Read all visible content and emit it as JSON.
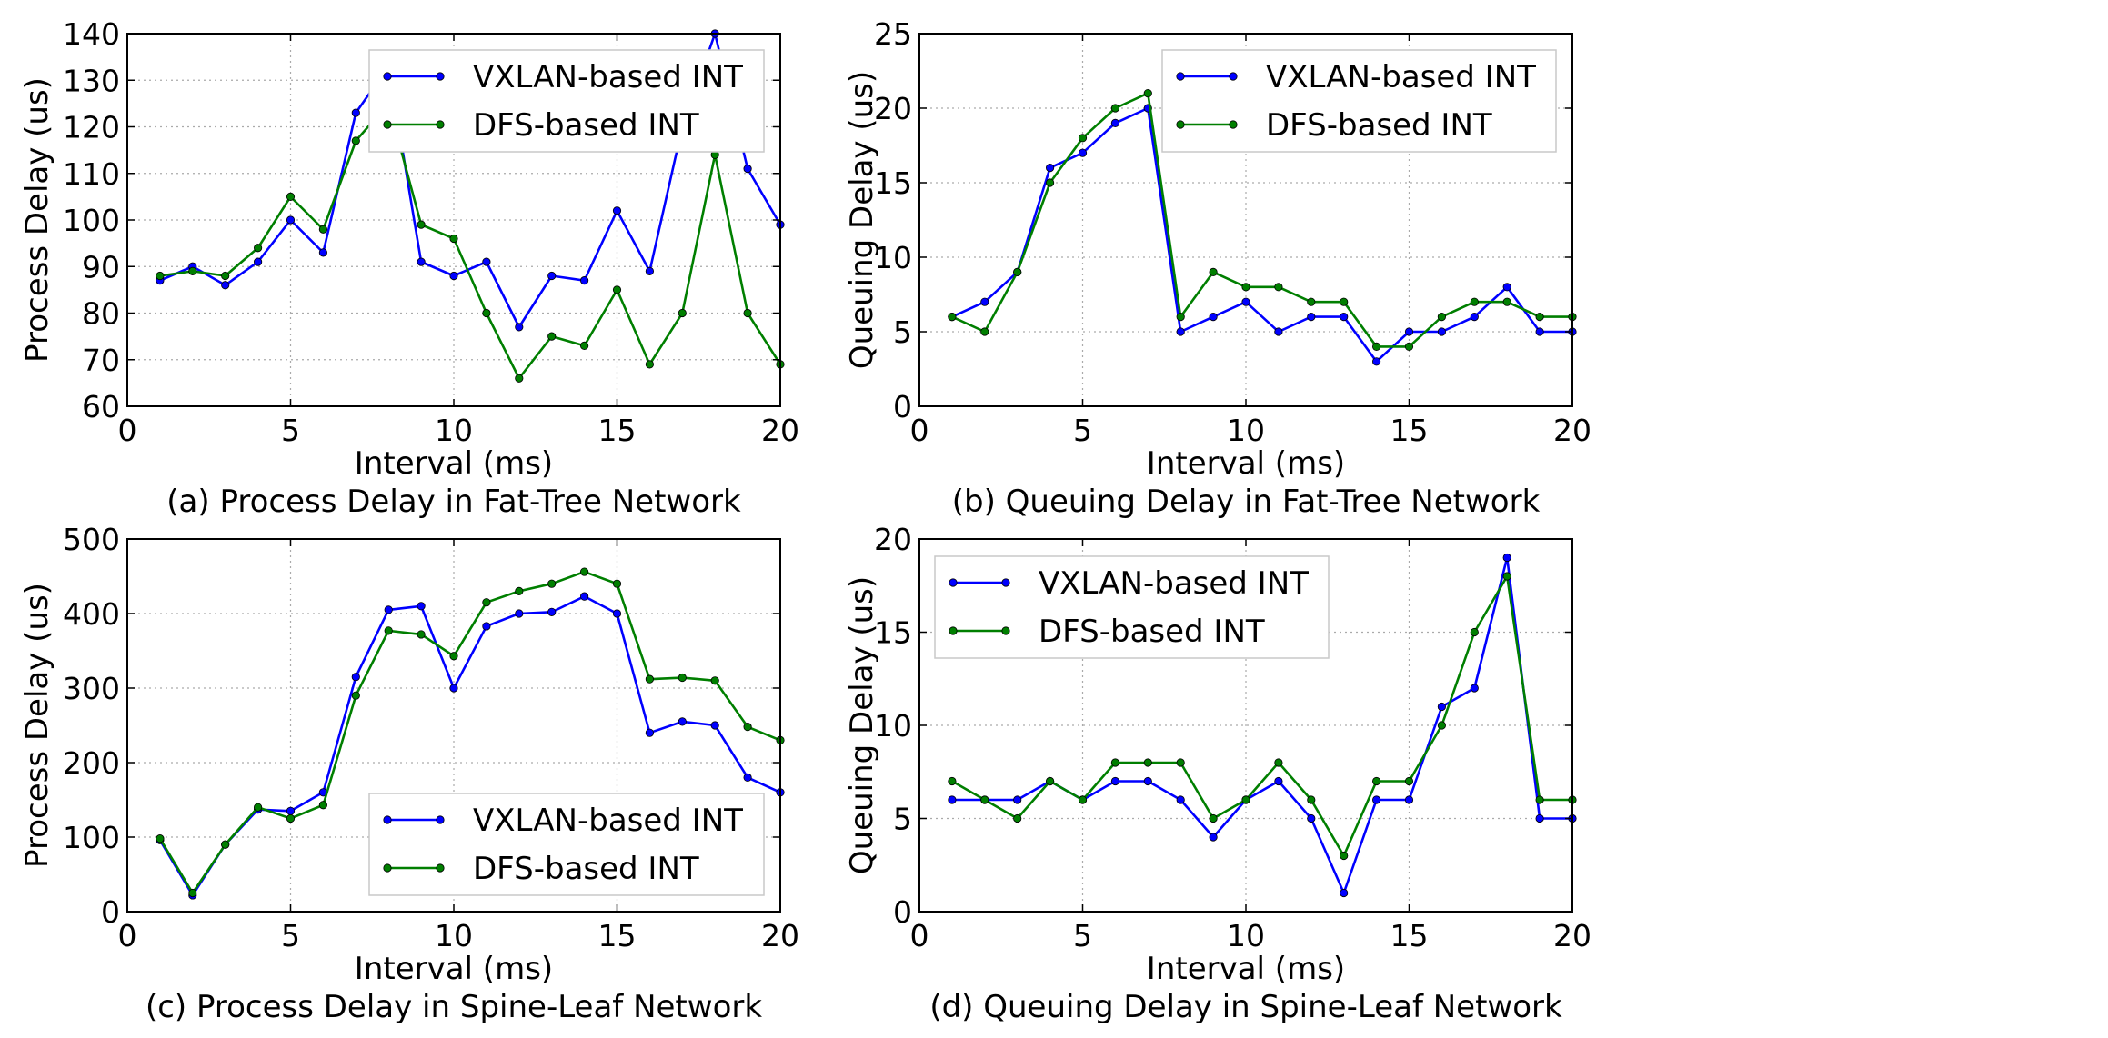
{
  "chart_data": [
    {
      "type": "line",
      "caption": "(a) Process Delay in Fat-Tree Network",
      "xlabel": "Interval (ms)",
      "ylabel": "Process Delay (us)",
      "xlim": [
        0,
        20
      ],
      "ylim": [
        60,
        140
      ],
      "xticks": [
        0,
        5,
        10,
        15,
        20
      ],
      "yticks": [
        60,
        70,
        80,
        90,
        100,
        110,
        120,
        130,
        140
      ],
      "grid": true,
      "legend_position": "top-right",
      "x": [
        1,
        2,
        3,
        4,
        5,
        6,
        7,
        8,
        9,
        10,
        11,
        12,
        13,
        14,
        15,
        16,
        17,
        18,
        19,
        20
      ],
      "series": [
        {
          "name": "VXLAN-based INT",
          "color": "#0000ff",
          "values": [
            87,
            90,
            86,
            91,
            100,
            93,
            123,
            133,
            91,
            88,
            91,
            77,
            88,
            87,
            102,
            89,
            120,
            140,
            111,
            99
          ]
        },
        {
          "name": "DFS-based INT",
          "color": "#007f00",
          "values": [
            88,
            89,
            88,
            94,
            105,
            98,
            117,
            125,
            99,
            96,
            80,
            66,
            75,
            73,
            85,
            69,
            80,
            114,
            80,
            69
          ]
        }
      ]
    },
    {
      "type": "line",
      "caption": "(b) Queuing Delay in Fat-Tree Network",
      "xlabel": "Interval (ms)",
      "ylabel": "Queuing Delay (us)",
      "xlim": [
        0,
        20
      ],
      "ylim": [
        0,
        25
      ],
      "xticks": [
        0,
        5,
        10,
        15,
        20
      ],
      "yticks": [
        0,
        5,
        10,
        15,
        20,
        25
      ],
      "grid": true,
      "legend_position": "top-right",
      "x": [
        1,
        2,
        3,
        4,
        5,
        6,
        7,
        8,
        9,
        10,
        11,
        12,
        13,
        14,
        15,
        16,
        17,
        18,
        19,
        20
      ],
      "series": [
        {
          "name": "VXLAN-based INT",
          "color": "#0000ff",
          "values": [
            6,
            7,
            9,
            16,
            17,
            19,
            20,
            5,
            6,
            7,
            5,
            6,
            6,
            3,
            5,
            5,
            6,
            8,
            5,
            5
          ]
        },
        {
          "name": "DFS-based INT",
          "color": "#007f00",
          "values": [
            6,
            5,
            9,
            15,
            18,
            20,
            21,
            6,
            9,
            8,
            8,
            7,
            7,
            4,
            4,
            6,
            7,
            7,
            6,
            6
          ]
        }
      ]
    },
    {
      "type": "line",
      "caption": "(c) Process Delay in Spine-Leaf Network",
      "xlabel": "Interval (ms)",
      "ylabel": "Process Delay (us)",
      "xlim": [
        0,
        20
      ],
      "ylim": [
        0,
        500
      ],
      "xticks": [
        0,
        5,
        10,
        15,
        20
      ],
      "yticks": [
        0,
        100,
        200,
        300,
        400,
        500
      ],
      "grid": true,
      "legend_position": "bottom-right",
      "x": [
        1,
        2,
        3,
        4,
        5,
        6,
        7,
        8,
        9,
        10,
        11,
        12,
        13,
        14,
        15,
        16,
        17,
        18,
        19,
        20
      ],
      "series": [
        {
          "name": "VXLAN-based INT",
          "color": "#0000ff",
          "values": [
            96,
            22,
            90,
            137,
            135,
            160,
            315,
            405,
            410,
            300,
            383,
            400,
            402,
            423,
            400,
            240,
            255,
            250,
            180,
            160
          ]
        },
        {
          "name": "DFS-based INT",
          "color": "#007f00",
          "values": [
            98,
            25,
            90,
            140,
            125,
            143,
            290,
            377,
            372,
            343,
            415,
            430,
            440,
            456,
            440,
            312,
            314,
            310,
            248,
            230
          ]
        }
      ]
    },
    {
      "type": "line",
      "caption": "(d) Queuing Delay in Spine-Leaf Network",
      "xlabel": "Interval (ms)",
      "ylabel": "Queuing Delay (us)",
      "xlim": [
        0,
        20
      ],
      "ylim": [
        0,
        20
      ],
      "xticks": [
        0,
        5,
        10,
        15,
        20
      ],
      "yticks": [
        0,
        5,
        10,
        15,
        20
      ],
      "grid": true,
      "legend_position": "top-left",
      "x": [
        1,
        2,
        3,
        4,
        5,
        6,
        7,
        8,
        9,
        10,
        11,
        12,
        13,
        14,
        15,
        16,
        17,
        18,
        19,
        20
      ],
      "series": [
        {
          "name": "VXLAN-based INT",
          "color": "#0000ff",
          "values": [
            6,
            6,
            6,
            7,
            6,
            7,
            7,
            6,
            4,
            6,
            7,
            5,
            1,
            6,
            6,
            11,
            12,
            19,
            5,
            5
          ]
        },
        {
          "name": "DFS-based INT",
          "color": "#007f00",
          "values": [
            7,
            6,
            5,
            7,
            6,
            8,
            8,
            8,
            5,
            6,
            8,
            6,
            3,
            7,
            7,
            10,
            15,
            18,
            6,
            6
          ]
        }
      ]
    }
  ]
}
